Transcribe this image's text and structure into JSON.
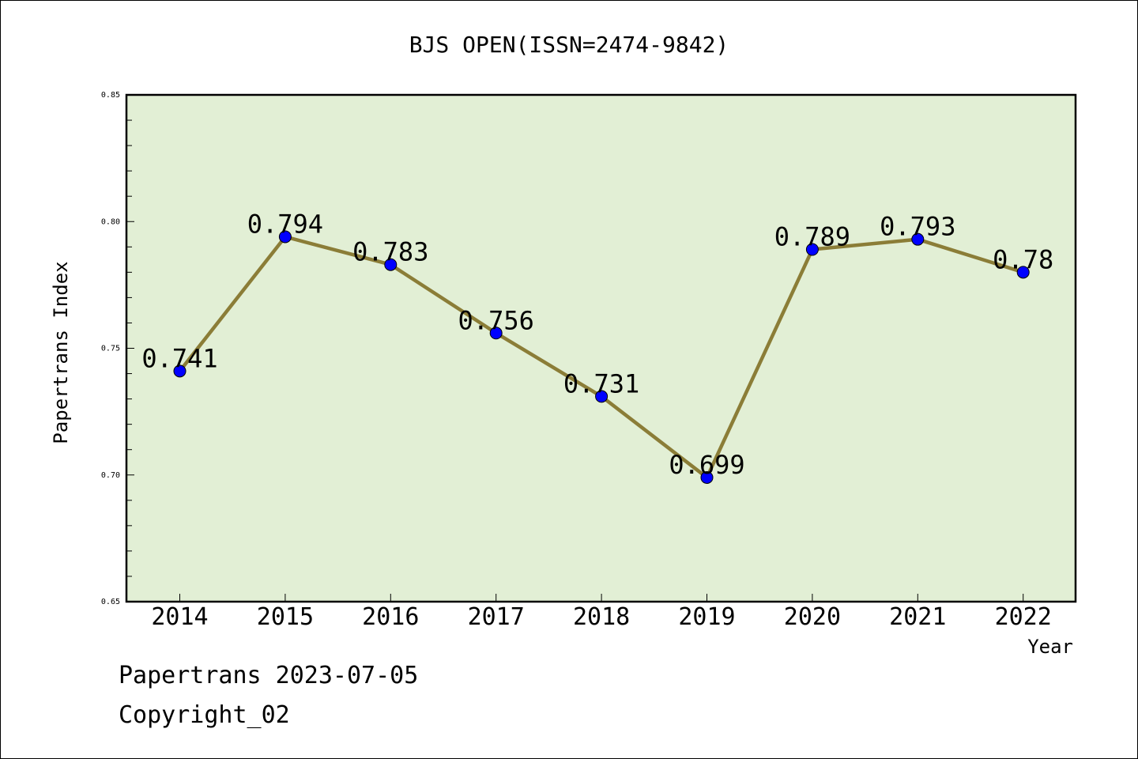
{
  "chart_data": {
    "type": "line",
    "title": "BJS OPEN(ISSN=2474-9842)",
    "xlabel": "Year",
    "ylabel": "Papertrans Index",
    "categories": [
      "2014",
      "2015",
      "2016",
      "2017",
      "2018",
      "2019",
      "2020",
      "2021",
      "2022"
    ],
    "series": [
      {
        "values": [
          0.741,
          0.794,
          0.783,
          0.756,
          0.731,
          0.699,
          0.789,
          0.793,
          0.78
        ]
      }
    ],
    "data_labels": [
      "0.741",
      "0.794",
      "0.783",
      "0.756",
      "0.731",
      "0.699",
      "0.789",
      "0.793",
      "0.78"
    ],
    "ylim": [
      0.65,
      0.85
    ],
    "yticks": [
      "0.65",
      "0.70",
      "0.75",
      "0.80",
      "0.85"
    ],
    "grid": false,
    "colors": {
      "plot_background": "#e2efd5",
      "line": "#8b7d37",
      "marker": "#0000ff"
    }
  },
  "footer": {
    "line1": "Papertrans 2023-07-05",
    "line2": "Copyright_02"
  }
}
